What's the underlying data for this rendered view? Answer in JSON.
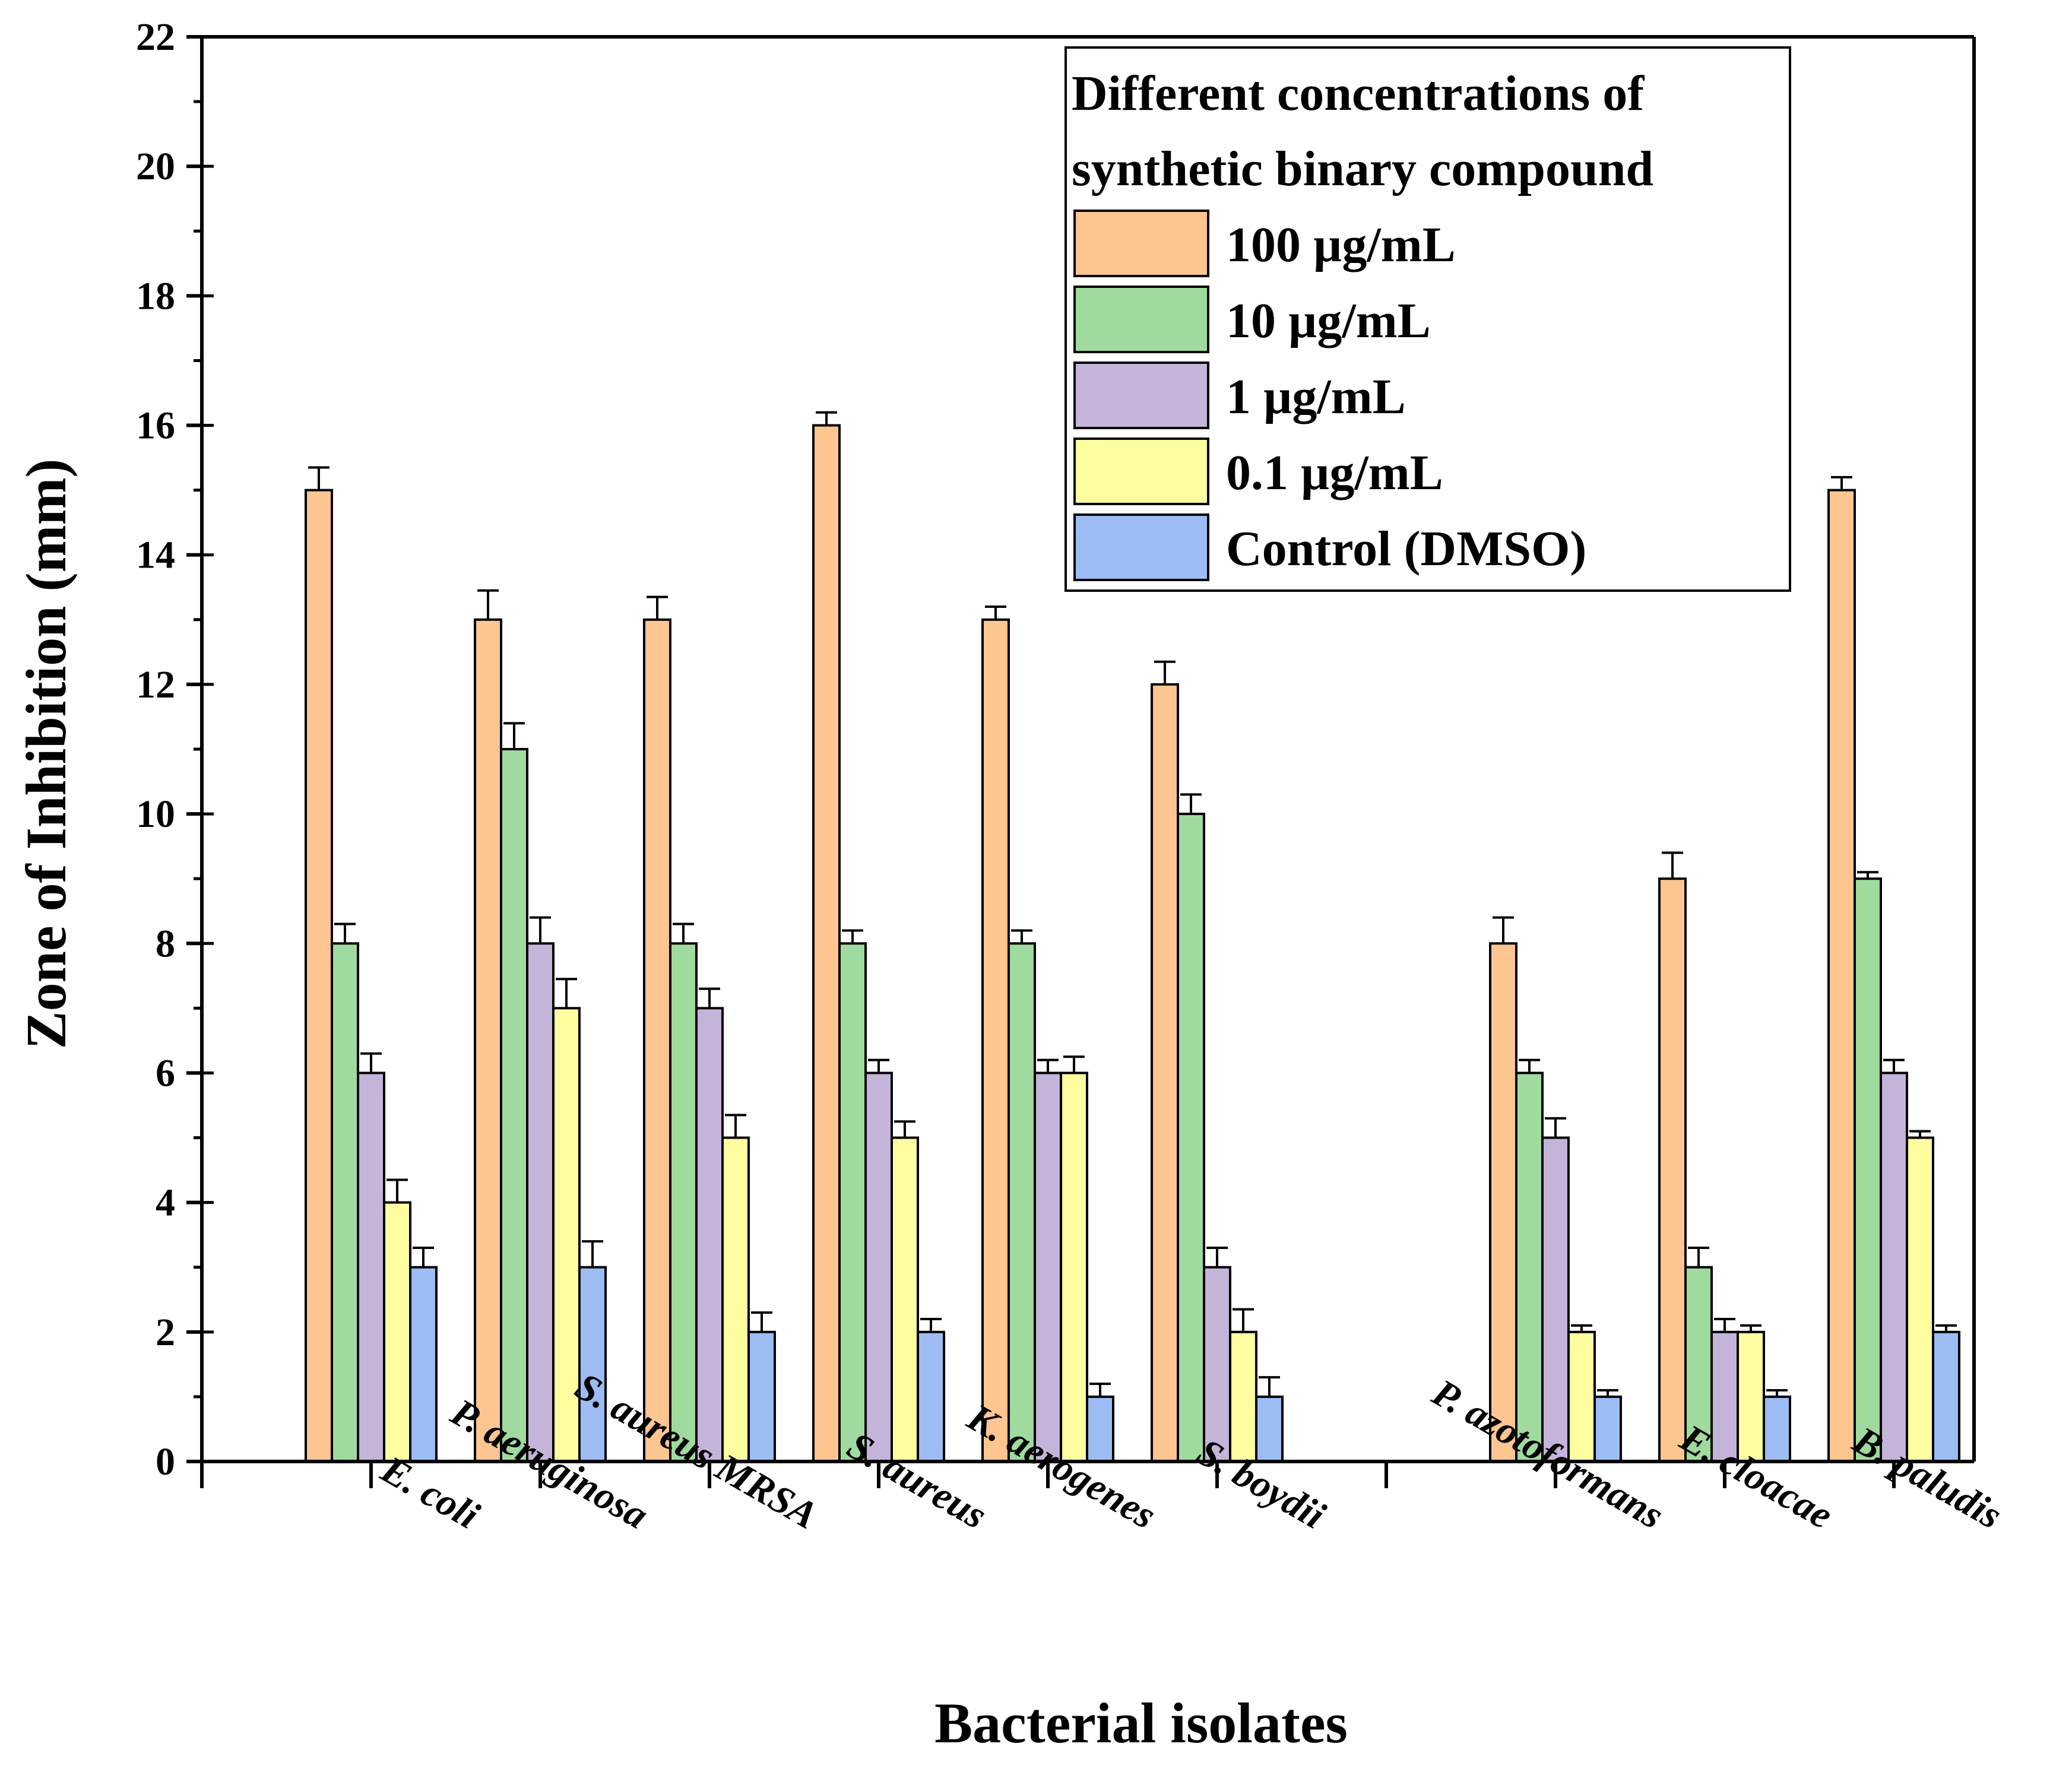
{
  "chart_data": {
    "type": "bar",
    "title": "",
    "xlabel": "Bacterial isolates",
    "ylabel": "Zone of Inhibition (mm)",
    "ylim": [
      0,
      22
    ],
    "yticks": [
      "0",
      "2",
      "4",
      "6",
      "8",
      "10",
      "12",
      "14",
      "16",
      "18",
      "20",
      "22"
    ],
    "categories": [
      "E. coli",
      "P. aeruginosa",
      "S. aureus MRSA",
      "S. aureus",
      "K. aerogenes",
      "S. boydii",
      "",
      "P. azotoformans",
      "E. cloacae",
      "B. paludis"
    ],
    "legend_title": [
      "Different concentrations of",
      "synthetic binary compound"
    ],
    "legend_position": "top-right",
    "series": [
      {
        "name": "100 µg/mL",
        "color": "#FDC590",
        "values": [
          15,
          13,
          13,
          16,
          13,
          12,
          null,
          8,
          9,
          15
        ],
        "errors": [
          0.35,
          0.45,
          0.35,
          0.2,
          0.2,
          0.35,
          null,
          0.4,
          0.4,
          0.2
        ]
      },
      {
        "name": "10 µg/mL",
        "color": "#9FDB9E",
        "values": [
          8,
          11,
          8,
          8,
          8,
          10,
          null,
          6,
          3,
          9
        ],
        "errors": [
          0.3,
          0.4,
          0.3,
          0.2,
          0.2,
          0.3,
          null,
          0.2,
          0.3,
          0.1
        ]
      },
      {
        "name": "1 µg/mL",
        "color": "#C5B4D9",
        "values": [
          6,
          8,
          7,
          6,
          6,
          3,
          null,
          5,
          2,
          6
        ],
        "errors": [
          0.3,
          0.4,
          0.3,
          0.2,
          0.2,
          0.3,
          null,
          0.3,
          0.2,
          0.2
        ]
      },
      {
        "name": "0.1 µg/mL",
        "color": "#FEFD9F",
        "values": [
          4,
          7,
          5,
          5,
          6,
          2,
          null,
          2,
          2,
          5
        ],
        "errors": [
          0.35,
          0.45,
          0.35,
          0.25,
          0.25,
          0.35,
          null,
          0.1,
          0.1,
          0.1
        ]
      },
      {
        "name": "Control (DMSO)",
        "color": "#9DBCF3",
        "values": [
          3,
          3,
          2,
          2,
          1,
          1,
          null,
          1,
          1,
          2
        ],
        "errors": [
          0.3,
          0.4,
          0.3,
          0.2,
          0.2,
          0.3,
          null,
          0.1,
          0.1,
          0.1
        ]
      }
    ]
  }
}
